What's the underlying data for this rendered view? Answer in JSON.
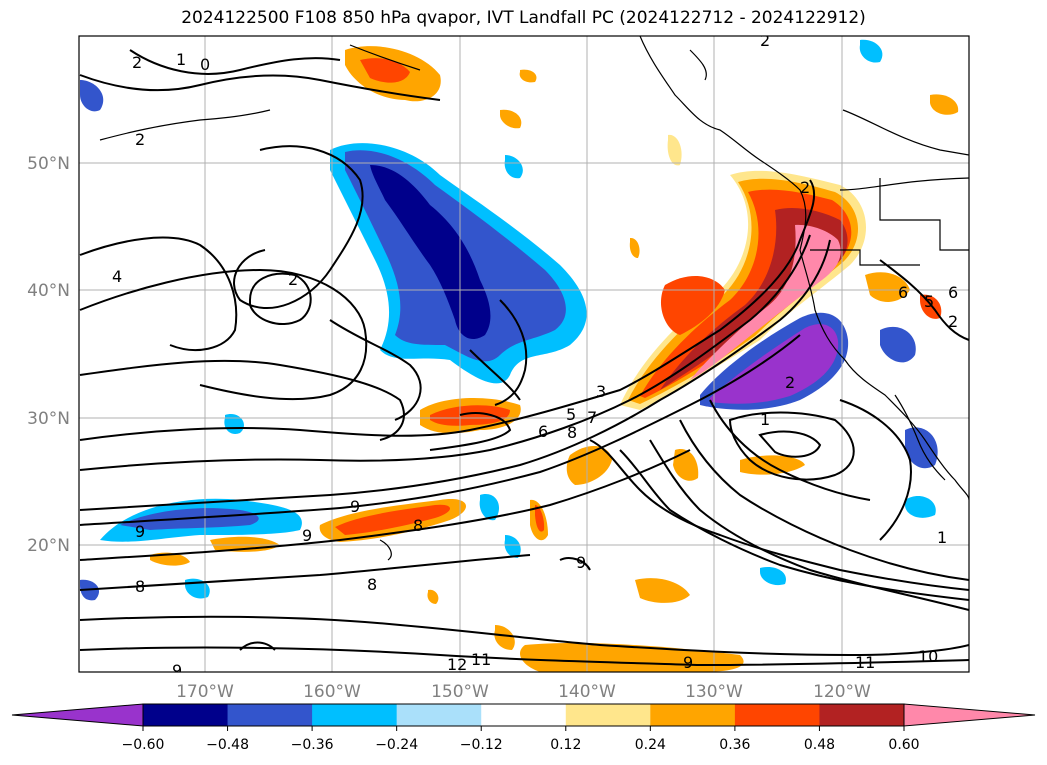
{
  "title": "2024122500 F108 850 hPa qvapor, IVT Landfall PC (2024122712 - 2024122912)",
  "map": {
    "lat_labels": [
      "50°N",
      "40°N",
      "30°N",
      "20°N"
    ],
    "lon_labels": [
      "170°W",
      "160°W",
      "150°W",
      "140°W",
      "130°W",
      "120°W"
    ],
    "contour_labels": [
      "2",
      "1",
      "0",
      "2",
      "2",
      "4",
      "2",
      "3",
      "5",
      "6",
      "7",
      "8",
      "1",
      "2",
      "9",
      "9",
      "9",
      "8",
      "8",
      "8",
      "9",
      "12",
      "11",
      "9",
      "11",
      "10",
      "1",
      "2",
      "6",
      "5",
      "6",
      "2",
      "9"
    ]
  },
  "colorbar": {
    "ticks": [
      "−0.60",
      "−0.48",
      "−0.36",
      "−0.24",
      "−0.12",
      "0.12",
      "0.24",
      "0.36",
      "0.48",
      "0.60"
    ],
    "colors": [
      "#9933cc",
      "#00008b",
      "#3355cc",
      "#00bfff",
      "#aae0fa",
      "#ffffff",
      "#ffe68c",
      "#ffa500",
      "#ff4500",
      "#b22222",
      "#ff88aa",
      "#ff88aa"
    ]
  }
}
